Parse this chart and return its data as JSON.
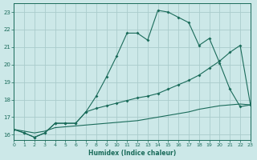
{
  "xlabel": "Humidex (Indice chaleur)",
  "background_color": "#cce8e8",
  "grid_color": "#aacccc",
  "line_color": "#1a6b5a",
  "xlim": [
    0,
    23
  ],
  "ylim": [
    15.7,
    23.5
  ],
  "xticks": [
    0,
    1,
    2,
    3,
    4,
    5,
    6,
    7,
    8,
    9,
    10,
    11,
    12,
    13,
    14,
    15,
    16,
    17,
    18,
    19,
    20,
    21,
    22,
    23
  ],
  "yticks": [
    16,
    17,
    18,
    19,
    20,
    21,
    22,
    23
  ],
  "curve1_x": [
    0,
    1,
    2,
    3,
    4,
    5,
    6,
    7,
    8,
    9,
    10,
    11,
    12,
    13,
    14,
    15,
    16,
    17,
    18,
    19,
    20,
    21,
    22,
    23
  ],
  "curve1_y": [
    16.3,
    16.1,
    15.85,
    16.1,
    16.65,
    16.65,
    16.65,
    17.3,
    18.2,
    19.3,
    20.5,
    21.8,
    21.8,
    21.4,
    23.1,
    23.0,
    22.7,
    22.4,
    21.1,
    21.5,
    20.1,
    18.6,
    17.6,
    17.7
  ],
  "curve2_x": [
    0,
    1,
    2,
    3,
    4,
    5,
    6,
    7,
    8,
    9,
    10,
    11,
    12,
    13,
    14,
    15,
    16,
    17,
    18,
    19,
    20,
    21,
    22,
    23
  ],
  "curve2_y": [
    16.3,
    16.1,
    15.85,
    16.1,
    16.65,
    16.65,
    16.65,
    17.3,
    17.5,
    17.65,
    17.8,
    17.95,
    18.1,
    18.2,
    18.35,
    18.6,
    18.85,
    19.1,
    19.4,
    19.8,
    20.2,
    20.7,
    21.1,
    17.7
  ],
  "curve3_x": [
    0,
    1,
    2,
    3,
    4,
    5,
    6,
    7,
    8,
    9,
    10,
    11,
    12,
    13,
    14,
    15,
    16,
    17,
    18,
    19,
    20,
    21,
    22,
    23
  ],
  "curve3_y": [
    16.3,
    16.2,
    16.1,
    16.2,
    16.4,
    16.45,
    16.5,
    16.55,
    16.6,
    16.65,
    16.7,
    16.75,
    16.8,
    16.9,
    17.0,
    17.1,
    17.2,
    17.3,
    17.45,
    17.55,
    17.65,
    17.7,
    17.75,
    17.7
  ]
}
